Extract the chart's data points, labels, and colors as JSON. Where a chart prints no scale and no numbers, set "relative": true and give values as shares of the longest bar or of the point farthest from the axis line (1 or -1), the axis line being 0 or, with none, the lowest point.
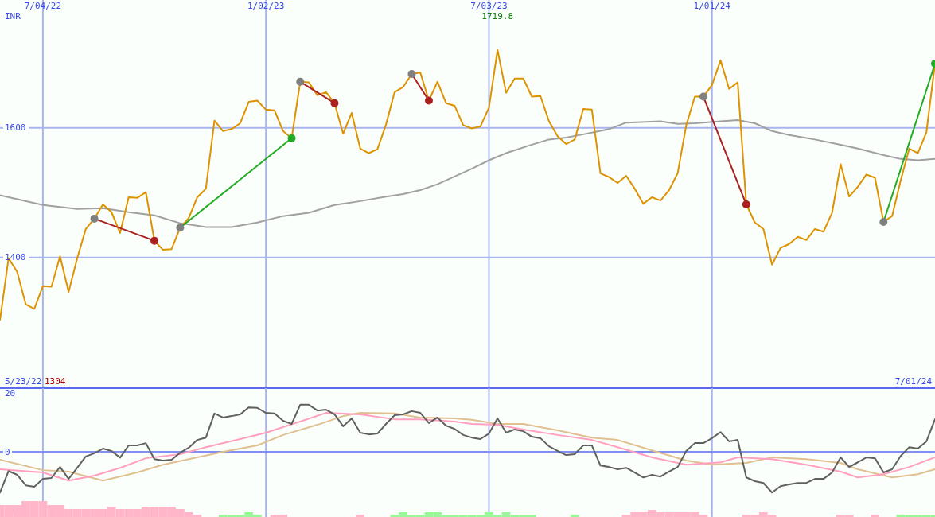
{
  "chart_data": [
    {
      "type": "line",
      "ylabel": "INR",
      "annotations": [
        "5/23/22",
        "7/01/24",
        "1304",
        "1719.8"
      ],
      "x": [
        "2022-05-30",
        "2022-06-06",
        "2022-06-13",
        "2022-06-20",
        "2022-06-27",
        "2022-07-04",
        "2022-07-11",
        "2022-07-18",
        "2022-07-25",
        "2022-08-01",
        "2022-08-08",
        "2022-08-15",
        "2022-08-22",
        "2022-08-29",
        "2022-09-05",
        "2022-09-12",
        "2022-09-19",
        "2022-09-26",
        "2022-10-03",
        "2022-10-10",
        "2022-10-17",
        "2022-10-24",
        "2022-10-31",
        "2022-11-07",
        "2022-11-14",
        "2022-11-21",
        "2022-11-28",
        "2022-12-05",
        "2022-12-12",
        "2022-12-19",
        "2022-12-26",
        "2023-01-02",
        "2023-01-09",
        "2023-01-16",
        "2023-01-23",
        "2023-01-30",
        "2023-02-06",
        "2023-02-13",
        "2023-02-20",
        "2023-02-27",
        "2023-03-06",
        "2023-03-13",
        "2023-03-20",
        "2023-03-27",
        "2023-04-03",
        "2023-04-10",
        "2023-04-17",
        "2023-04-24",
        "2023-05-01",
        "2023-05-08",
        "2023-05-15",
        "2023-05-22",
        "2023-05-29",
        "2023-06-05",
        "2023-06-12",
        "2023-06-19",
        "2023-06-26",
        "2023-07-03",
        "2023-07-10",
        "2023-07-17",
        "2023-07-24",
        "2023-07-31",
        "2023-08-07",
        "2023-08-14",
        "2023-08-21",
        "2023-08-28",
        "2023-09-04",
        "2023-09-11",
        "2023-09-18",
        "2023-09-25",
        "2023-10-02",
        "2023-10-09",
        "2023-10-16",
        "2023-10-23",
        "2023-10-30",
        "2023-11-06",
        "2023-11-13",
        "2023-11-20",
        "2023-11-27",
        "2023-12-04",
        "2023-12-11",
        "2023-12-18",
        "2023-12-25",
        "2024-01-01",
        "2024-01-08",
        "2024-01-15",
        "2024-01-22",
        "2024-01-29",
        "2024-02-05",
        "2024-02-12",
        "2024-02-19",
        "2024-02-26",
        "2024-03-04",
        "2024-03-11",
        "2024-03-18",
        "2024-03-25",
        "2024-04-01",
        "2024-04-08",
        "2024-04-15",
        "2024-04-22",
        "2024-04-29",
        "2024-05-06",
        "2024-05-13",
        "2024-05-20",
        "2024-05-27",
        "2024-06-03",
        "2024-06-10",
        "2024-06-17",
        "2024-06-24",
        "2024-07-01"
      ],
      "xlim": [
        "2022-05-30",
        "2024-07-01"
      ],
      "xticks": [
        {
          "value": "2022-07-04",
          "label": "7/04/22"
        },
        {
          "value": "2023-01-02",
          "label": "1/02/23"
        },
        {
          "value": "2023-07-03",
          "label": "7/03/23"
        },
        {
          "value": "2024-01-01",
          "label": "1/01/24"
        }
      ],
      "ylim": [
        1200,
        1797
      ],
      "yticks": [
        1400,
        1600
      ],
      "grid": true,
      "series": [
        {
          "color": "#a0a0a0",
          "x": [
            "2022-05-30",
            "2022-07-04",
            "2022-08-01",
            "2022-08-22",
            "2022-09-12",
            "2022-10-03",
            "2022-10-24",
            "2022-11-14",
            "2022-12-05",
            "2022-12-26",
            "2023-01-16",
            "2023-02-06",
            "2023-02-27",
            "2023-03-20",
            "2023-04-10",
            "2023-04-24",
            "2023-05-08",
            "2023-05-22",
            "2023-06-05",
            "2023-06-19",
            "2023-07-03",
            "2023-07-17",
            "2023-08-07",
            "2023-08-21",
            "2023-09-04",
            "2023-09-18",
            "2023-10-09",
            "2023-10-23",
            "2023-11-20",
            "2023-12-04",
            "2023-12-18",
            "2024-01-08",
            "2024-01-22",
            "2024-02-05",
            "2024-02-19",
            "2024-03-04",
            "2024-03-25",
            "2024-04-15",
            "2024-04-29",
            "2024-05-20",
            "2024-06-03",
            "2024-06-17",
            "2024-07-01"
          ],
          "values": [
            1496,
            1481,
            1475,
            1476,
            1470,
            1465,
            1453,
            1447,
            1447,
            1454,
            1464,
            1469,
            1481,
            1487,
            1494,
            1498,
            1504,
            1513,
            1525,
            1537,
            1550,
            1561,
            1574,
            1582,
            1585,
            1590,
            1598,
            1608,
            1610,
            1606,
            1607,
            1610,
            1612,
            1607,
            1595,
            1589,
            1582,
            1574,
            1568,
            1558,
            1552,
            1550,
            1552
          ]
        },
        {
          "color": "#dd9200",
          "values": [
            1304,
            1399,
            1378,
            1328,
            1321,
            1356,
            1355,
            1402,
            1347,
            1399,
            1444,
            1460,
            1482,
            1470,
            1438,
            1493,
            1492,
            1501,
            1426,
            1412,
            1413,
            1446,
            1461,
            1493,
            1506,
            1611,
            1595,
            1598,
            1607,
            1640,
            1642,
            1628,
            1627,
            1595,
            1584,
            1671,
            1670,
            1650,
            1655,
            1638,
            1591,
            1623,
            1568,
            1561,
            1567,
            1605,
            1655,
            1663,
            1683,
            1685,
            1642,
            1671,
            1638,
            1634,
            1604,
            1599,
            1602,
            1631,
            1720,
            1654,
            1676,
            1676,
            1648,
            1649,
            1610,
            1587,
            1575,
            1582,
            1629,
            1628,
            1530,
            1524,
            1515,
            1526,
            1506,
            1483,
            1493,
            1488,
            1504,
            1530,
            1604,
            1648,
            1648,
            1666,
            1704,
            1660,
            1670,
            1482,
            1454,
            1444,
            1389,
            1415,
            1421,
            1432,
            1427,
            1444,
            1440,
            1469,
            1544,
            1494,
            1509,
            1528,
            1523,
            1455,
            1464,
            1519,
            1568,
            1561,
            1593,
            1699
          ]
        },
        {
          "color": "#aa2020",
          "marker": "circle",
          "colors": [
            "#808080",
            "#aa2020"
          ],
          "x": [
            "2022-08-15",
            "2022-10-03"
          ],
          "values": [
            1460,
            1426
          ]
        },
        {
          "color": "#22aa22",
          "marker": "circle",
          "colors": [
            "#808080",
            "#22aa22"
          ],
          "x": [
            "2022-10-24",
            "2023-01-23"
          ],
          "values": [
            1446,
            1584
          ]
        },
        {
          "color": "#aa2020",
          "marker": "circle",
          "colors": [
            "#808080",
            "#aa2020"
          ],
          "x": [
            "2023-01-30",
            "2023-02-27"
          ],
          "values": [
            1671,
            1638
          ]
        },
        {
          "color": "#aa2020",
          "marker": "circle",
          "colors": [
            "#808080",
            "#aa2020"
          ],
          "x": [
            "2023-05-01",
            "2023-05-15"
          ],
          "values": [
            1683,
            1642
          ]
        },
        {
          "color": "#aa2020",
          "marker": "circle",
          "colors": [
            "#808080",
            "#aa2020"
          ],
          "x": [
            "2023-12-25",
            "2024-01-29"
          ],
          "values": [
            1648,
            1482
          ]
        },
        {
          "color": "#22aa22",
          "marker": "circle",
          "colors": [
            "#808080",
            "#22aa22"
          ],
          "x": [
            "2024-05-20",
            "2024-07-01"
          ],
          "values": [
            1455,
            1699
          ]
        }
      ]
    },
    {
      "type": "line",
      "x": [
        "2022-05-30",
        "2022-06-06",
        "2022-06-13",
        "2022-06-20",
        "2022-06-27",
        "2022-07-04",
        "2022-07-11",
        "2022-07-18",
        "2022-07-25",
        "2022-08-01",
        "2022-08-08",
        "2022-08-15",
        "2022-08-22",
        "2022-08-29",
        "2022-09-05",
        "2022-09-12",
        "2022-09-19",
        "2022-09-26",
        "2022-10-03",
        "2022-10-10",
        "2022-10-17",
        "2022-10-24",
        "2022-10-31",
        "2022-11-07",
        "2022-11-14",
        "2022-11-21",
        "2022-11-28",
        "2022-12-05",
        "2022-12-12",
        "2022-12-19",
        "2022-12-26",
        "2023-01-02",
        "2023-01-09",
        "2023-01-16",
        "2023-01-23",
        "2023-01-30",
        "2023-02-06",
        "2023-02-13",
        "2023-02-20",
        "2023-02-27",
        "2023-03-06",
        "2023-03-13",
        "2023-03-20",
        "2023-03-27",
        "2023-04-03",
        "2023-04-10",
        "2023-04-17",
        "2023-04-24",
        "2023-05-01",
        "2023-05-08",
        "2023-05-15",
        "2023-05-22",
        "2023-05-29",
        "2023-06-05",
        "2023-06-12",
        "2023-06-19",
        "2023-06-26",
        "2023-07-03",
        "2023-07-10",
        "2023-07-17",
        "2023-07-24",
        "2023-07-31",
        "2023-08-07",
        "2023-08-14",
        "2023-08-21",
        "2023-08-28",
        "2023-09-04",
        "2023-09-11",
        "2023-09-18",
        "2023-09-25",
        "2023-10-02",
        "2023-10-09",
        "2023-10-16",
        "2023-10-23",
        "2023-10-30",
        "2023-11-06",
        "2023-11-13",
        "2023-11-20",
        "2023-11-27",
        "2023-12-04",
        "2023-12-11",
        "2023-12-18",
        "2023-12-25",
        "2024-01-01",
        "2024-01-08",
        "2024-01-15",
        "2024-01-22",
        "2024-01-29",
        "2024-02-05",
        "2024-02-12",
        "2024-02-19",
        "2024-02-26",
        "2024-03-04",
        "2024-03-11",
        "2024-03-18",
        "2024-03-25",
        "2024-04-01",
        "2024-04-08",
        "2024-04-15",
        "2024-04-22",
        "2024-04-29",
        "2024-05-06",
        "2024-05-13",
        "2024-05-20",
        "2024-05-27",
        "2024-06-03",
        "2024-06-10",
        "2024-06-17",
        "2024-06-24",
        "2024-07-01"
      ],
      "xlim": [
        "2022-05-30",
        "2024-07-01"
      ],
      "xticks": [
        {
          "value": "2022-07-04",
          "label": null
        },
        {
          "value": "2023-01-02",
          "label": null
        },
        {
          "value": "2023-07-03",
          "label": null
        },
        {
          "value": "2024-01-01",
          "label": null
        }
      ],
      "ylim": [
        -22.4,
        21.9
      ],
      "yticks": [
        -20,
        0,
        20
      ],
      "grid": "x",
      "tick_labels": "y",
      "ref_lines": [
        {
          "axis": "y",
          "value": 0
        }
      ],
      "series": [
        {
          "color": "#e0c090",
          "x": [
            "2022-05-30",
            "2022-07-04",
            "2022-07-25",
            "2022-08-22",
            "2022-09-19",
            "2022-10-10",
            "2022-11-07",
            "2022-11-28",
            "2022-12-26",
            "2023-01-16",
            "2023-02-13",
            "2023-03-06",
            "2023-03-20",
            "2023-04-17",
            "2023-05-08",
            "2023-06-05",
            "2023-06-19",
            "2023-07-10",
            "2023-07-31",
            "2023-08-28",
            "2023-09-25",
            "2023-10-16",
            "2023-11-13",
            "2023-12-11",
            "2024-01-01",
            "2024-01-29",
            "2024-02-19",
            "2024-03-18",
            "2024-04-15",
            "2024-04-29",
            "2024-05-27",
            "2024-06-17",
            "2024-07-01"
          ],
          "values": [
            -2.7,
            -6.3,
            -6.8,
            -9.9,
            -7.1,
            -4.4,
            -1.9,
            0,
            2.2,
            5.8,
            9.3,
            12.3,
            13.4,
            13.2,
            11.8,
            11.5,
            11.0,
            9.6,
            9.6,
            7.4,
            4.9,
            4.1,
            0.5,
            -3.0,
            -4.4,
            -3.8,
            -1.9,
            -2.5,
            -3.8,
            -6.0,
            -8.8,
            -7.7,
            -6.0
          ]
        },
        {
          "color": "#ffa0c0",
          "x": [
            "2022-05-30",
            "2022-07-04",
            "2022-07-25",
            "2022-08-15",
            "2022-09-05",
            "2022-09-26",
            "2022-10-24",
            "2022-11-14",
            "2022-12-12",
            "2023-01-02",
            "2023-01-30",
            "2023-02-20",
            "2023-03-20",
            "2023-04-17",
            "2023-05-08",
            "2023-06-05",
            "2023-06-19",
            "2023-07-10",
            "2023-07-31",
            "2023-08-28",
            "2023-09-25",
            "2023-10-16",
            "2023-11-13",
            "2023-12-11",
            "2024-01-08",
            "2024-01-22",
            "2024-02-19",
            "2024-03-18",
            "2024-04-15",
            "2024-04-29",
            "2024-05-20",
            "2024-06-10",
            "2024-07-01"
          ],
          "values": [
            -6.0,
            -7.1,
            -9.9,
            -8.2,
            -5.5,
            -2.2,
            -0.8,
            1.6,
            4.4,
            6.6,
            10.4,
            13.4,
            12.9,
            11.2,
            11.2,
            10.4,
            9.6,
            9.3,
            7.7,
            5.8,
            4.1,
            1.6,
            -1.9,
            -4.4,
            -3.6,
            -1.9,
            -2.5,
            -4.4,
            -6.8,
            -8.8,
            -7.7,
            -5.2,
            -1.9
          ]
        },
        {
          "color": "#606060",
          "values": [
            -14.0,
            -6.6,
            -7.9,
            -11.5,
            -12.0,
            -9.3,
            -9.0,
            -5.2,
            -9.3,
            -5.5,
            -1.6,
            -0.5,
            1.1,
            0.3,
            -2.0,
            2.2,
            2.2,
            3.0,
            -2.5,
            -3.0,
            -2.7,
            -0.3,
            1.4,
            4.1,
            4.9,
            13.2,
            11.8,
            12.3,
            12.9,
            15.3,
            15.1,
            13.4,
            13.2,
            10.7,
            9.6,
            16.2,
            16.2,
            14.2,
            14.5,
            12.9,
            8.8,
            11.5,
            6.6,
            6.0,
            6.3,
            9.6,
            12.6,
            12.9,
            14.0,
            13.4,
            9.9,
            11.8,
            9.0,
            7.9,
            5.8,
            4.9,
            4.4,
            6.3,
            11.5,
            6.6,
            7.7,
            7.1,
            5.2,
            4.7,
            1.9,
            0.3,
            -1.1,
            -0.8,
            2.2,
            2.2,
            -4.7,
            -5.2,
            -6.0,
            -5.5,
            -7.1,
            -8.8,
            -7.9,
            -8.5,
            -6.8,
            -5.2,
            0.3,
            3.0,
            3.0,
            4.7,
            6.8,
            3.6,
            4.1,
            -8.8,
            -10.1,
            -10.7,
            -14.0,
            -11.8,
            -11.2,
            -10.7,
            -10.7,
            -9.3,
            -9.3,
            -7.1,
            -1.9,
            -5.2,
            -3.6,
            -1.9,
            -2.2,
            -7.1,
            -6.0,
            -1.4,
            1.6,
            1.1,
            3.6,
            11.2
          ]
        }
      ]
    },
    {
      "type": "bar",
      "relative": true,
      "xlim": [
        "2022-05-30",
        "2024-07-01"
      ],
      "x": [
        "2022-05-30",
        "2022-06-06",
        "2022-06-13",
        "2022-06-20",
        "2022-06-27",
        "2022-07-04",
        "2022-07-11",
        "2022-07-18",
        "2022-07-25",
        "2022-08-01",
        "2022-08-08",
        "2022-08-15",
        "2022-08-22",
        "2022-08-29",
        "2022-09-05",
        "2022-09-12",
        "2022-09-19",
        "2022-09-26",
        "2022-10-03",
        "2022-10-10",
        "2022-10-17",
        "2022-10-24",
        "2022-10-31",
        "2022-11-07",
        "2022-11-28",
        "2022-12-05",
        "2022-12-12",
        "2022-12-19",
        "2022-12-26",
        "2023-01-09",
        "2023-01-16",
        "2023-03-20",
        "2023-04-17",
        "2023-04-24",
        "2023-05-01",
        "2023-05-08",
        "2023-05-15",
        "2023-05-22",
        "2023-05-29",
        "2023-06-05",
        "2023-06-12",
        "2023-06-19",
        "2023-06-26",
        "2023-07-03",
        "2023-07-10",
        "2023-07-17",
        "2023-07-24",
        "2023-07-31",
        "2023-08-07",
        "2023-09-11",
        "2023-10-23",
        "2023-10-30",
        "2023-11-06",
        "2023-11-13",
        "2023-11-20",
        "2023-11-27",
        "2023-12-04",
        "2023-12-11",
        "2023-12-18",
        "2023-12-25",
        "2024-01-29",
        "2024-02-05",
        "2024-02-12",
        "2024-02-19",
        "2024-04-15",
        "2024-04-22",
        "2024-05-13",
        "2024-06-03",
        "2024-06-10",
        "2024-06-17",
        "2024-06-24",
        "2024-07-01"
      ],
      "values": [
        0.75,
        0.75,
        0.75,
        1,
        1,
        1,
        0.75,
        0.75,
        0.5,
        0.5,
        0.5,
        0.5,
        0.5,
        0.65,
        0.5,
        0.5,
        0.5,
        0.65,
        0.65,
        0.65,
        0.65,
        0.5,
        0.3,
        0.15,
        0.15,
        0.15,
        0.15,
        0.3,
        0.15,
        0.15,
        0.15,
        0.15,
        0.15,
        0.3,
        0.15,
        0.15,
        0.3,
        0.3,
        0.15,
        0.15,
        0.15,
        0.15,
        0.15,
        0.3,
        0.15,
        0.3,
        0.15,
        0.15,
        0.15,
        0.15,
        0.15,
        0.3,
        0.3,
        0.45,
        0.3,
        0.3,
        0.3,
        0.3,
        0.3,
        0.15,
        0.15,
        0.15,
        0.3,
        0.15,
        0.15,
        0.15,
        0.15,
        0.15,
        0.15,
        0.15,
        0.15,
        0.15
      ],
      "colors": [
        "#ffb6c8",
        "#ffb6c8",
        "#ffb6c8",
        "#ffb6c8",
        "#ffb6c8",
        "#ffb6c8",
        "#ffb6c8",
        "#ffb6c8",
        "#ffb6c8",
        "#ffb6c8",
        "#ffb6c8",
        "#ffb6c8",
        "#ffb6c8",
        "#ffb6c8",
        "#ffb6c8",
        "#ffb6c8",
        "#ffb6c8",
        "#ffb6c8",
        "#ffb6c8",
        "#ffb6c8",
        "#ffb6c8",
        "#ffb6c8",
        "#ffb6c8",
        "#ffb6c8",
        "#98f898",
        "#98f898",
        "#98f898",
        "#98f898",
        "#98f898",
        "#ffb6c8",
        "#ffb6c8",
        "#ffb6c8",
        "#98f898",
        "#98f898",
        "#98f898",
        "#98f898",
        "#98f898",
        "#98f898",
        "#98f898",
        "#98f898",
        "#98f898",
        "#98f898",
        "#98f898",
        "#98f898",
        "#98f898",
        "#98f898",
        "#98f898",
        "#98f898",
        "#98f898",
        "#98f898",
        "#ffb6c8",
        "#ffb6c8",
        "#ffb6c8",
        "#ffb6c8",
        "#ffb6c8",
        "#ffb6c8",
        "#ffb6c8",
        "#ffb6c8",
        "#ffb6c8",
        "#ffb6c8",
        "#ffb6c8",
        "#ffb6c8",
        "#ffb6c8",
        "#ffb6c8",
        "#ffb6c8",
        "#ffb6c8",
        "#ffb6c8",
        "#98f898",
        "#98f898",
        "#98f898",
        "#98f898",
        "#98f898"
      ]
    }
  ]
}
